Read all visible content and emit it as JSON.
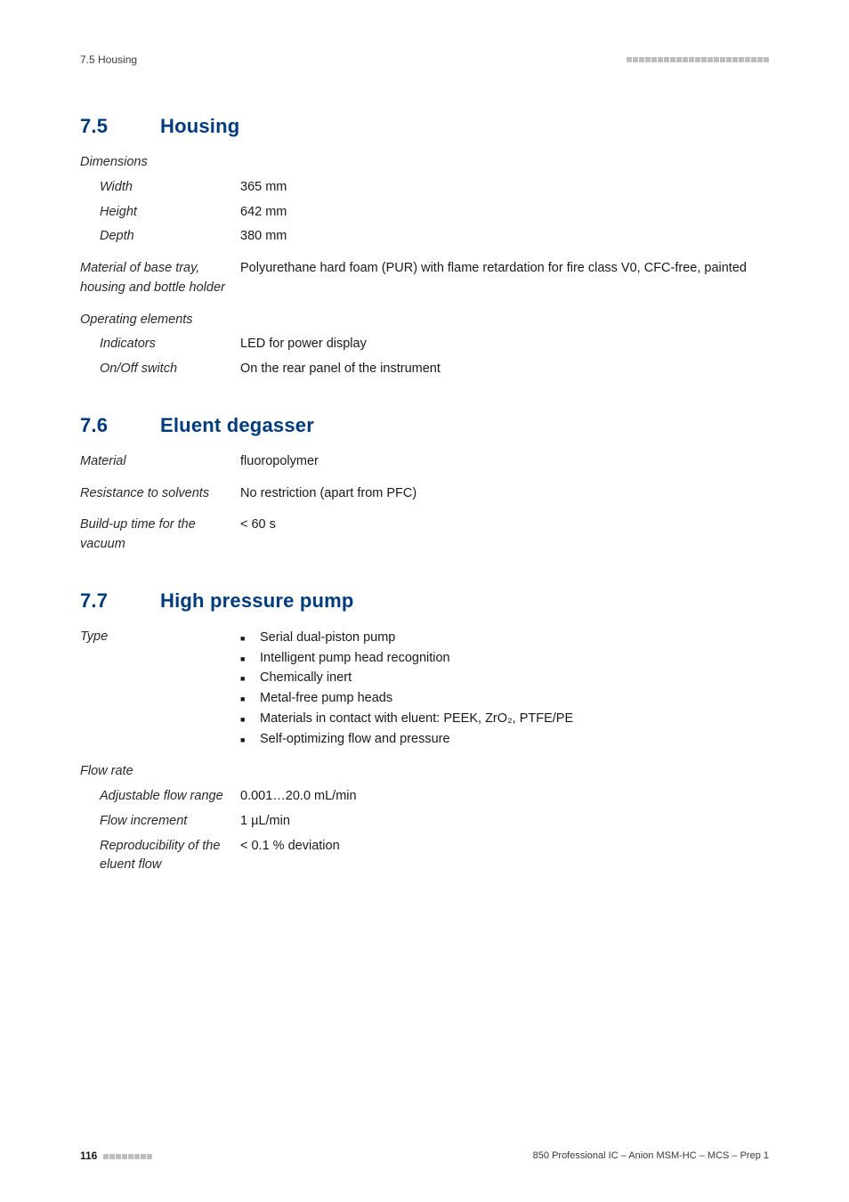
{
  "header": {
    "sectionRef": "7.5 Housing"
  },
  "footer": {
    "pageNum": "116",
    "docTitle": "850 Professional IC – Anion MSM-HC – MCS – Prep 1"
  },
  "sections": [
    {
      "num": "7.5",
      "title": "Housing",
      "rows": [
        {
          "label": "Dimensions",
          "sub": false,
          "value": ""
        },
        {
          "label": "Width",
          "sub": true,
          "value": "365 mm"
        },
        {
          "label": "Height",
          "sub": true,
          "value": "642 mm"
        },
        {
          "label": "Depth",
          "sub": true,
          "value": "380 mm"
        },
        {
          "spacer": true
        },
        {
          "label": "Material of base tray, housing and bottle holder",
          "sub": false,
          "value": "Polyurethane hard foam (PUR) with flame retardation for fire class V0, CFC-free, painted"
        },
        {
          "spacer": true
        },
        {
          "label": "Operating elements",
          "sub": false,
          "value": ""
        },
        {
          "label": "Indicators",
          "sub": true,
          "value": "LED for power display"
        },
        {
          "label": "On/Off switch",
          "sub": true,
          "value": "On the rear panel of the instrument"
        }
      ]
    },
    {
      "num": "7.6",
      "title": "Eluent degasser",
      "rows": [
        {
          "label": "Material",
          "sub": false,
          "value": "fluoropolymer"
        },
        {
          "spacer": true
        },
        {
          "label": "Resistance to solvents",
          "sub": false,
          "value": "No restriction (apart from PFC)"
        },
        {
          "spacer": true
        },
        {
          "label": "Build-up time for the vacuum",
          "sub": false,
          "value": "< 60 s"
        }
      ]
    },
    {
      "num": "7.7",
      "title": "High pressure pump",
      "rows": [
        {
          "label": "Type",
          "sub": false,
          "value": "",
          "list": [
            "Serial dual-piston pump",
            "Intelligent pump head recognition",
            "Chemically inert",
            "Metal-free pump heads",
            "Materials in contact with eluent: PEEK, ZrO₂, PTFE/PE",
            "Self-optimizing flow and pressure"
          ]
        },
        {
          "spacer": true
        },
        {
          "label": "Flow rate",
          "sub": false,
          "value": ""
        },
        {
          "label": "Adjustable flow range",
          "sub": true,
          "value": "0.001…20.0 mL/min"
        },
        {
          "label": "Flow increment",
          "sub": true,
          "value": "1 µL/min"
        },
        {
          "label": "Reproducibility of the eluent flow",
          "sub": true,
          "value": "< 0.1 % deviation"
        }
      ]
    }
  ]
}
